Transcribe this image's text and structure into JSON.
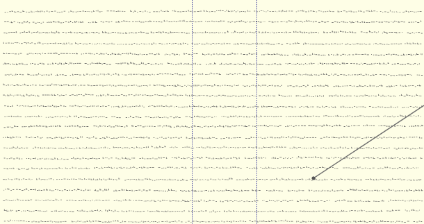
{
  "theme": {
    "background": "#fefee6",
    "text_color": "#5a5a5a",
    "guide_color": "#3d3d9e",
    "pointer_color": "#6e6e6e",
    "pointer_dot_color": "#555555"
  },
  "document": {
    "line_count": 21
  }
}
